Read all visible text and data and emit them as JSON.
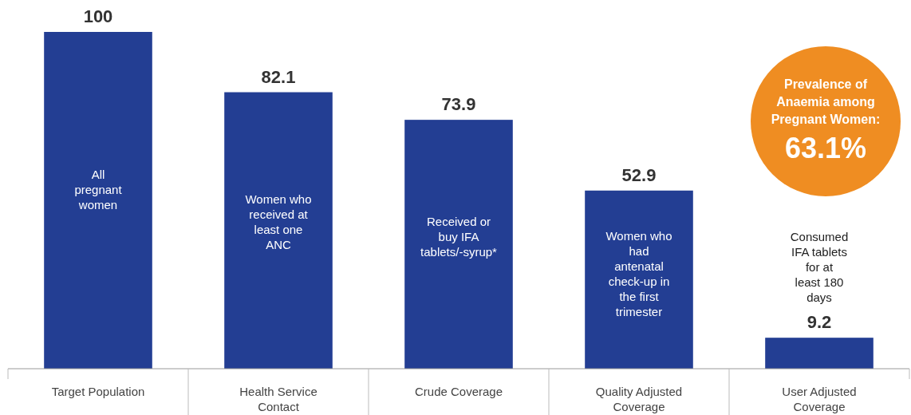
{
  "chart_data": {
    "type": "bar",
    "categories": [
      "Target Population",
      "Health Service Contact",
      "Crude Coverage",
      "Quality Adjusted Coverage",
      "User Adjusted Coverage"
    ],
    "values": [
      100,
      82.1,
      73.9,
      52.9,
      9.2
    ],
    "color": "#233e93",
    "data_labels": true,
    "annotations": [
      "All pregnant women",
      "Women who received at least one ANC",
      "Received or buy IFA tablets/-syrup*",
      "Women who had antenatal check-up in the first trimester",
      {
        "text": "Consumed IFA tablets for at least 180 days",
        "x": "User Adjusted Coverage",
        "y": 9.2
      },
      "Prevalence of Anaemia among Pregnant Women:",
      "63.1%"
    ]
  }
}
